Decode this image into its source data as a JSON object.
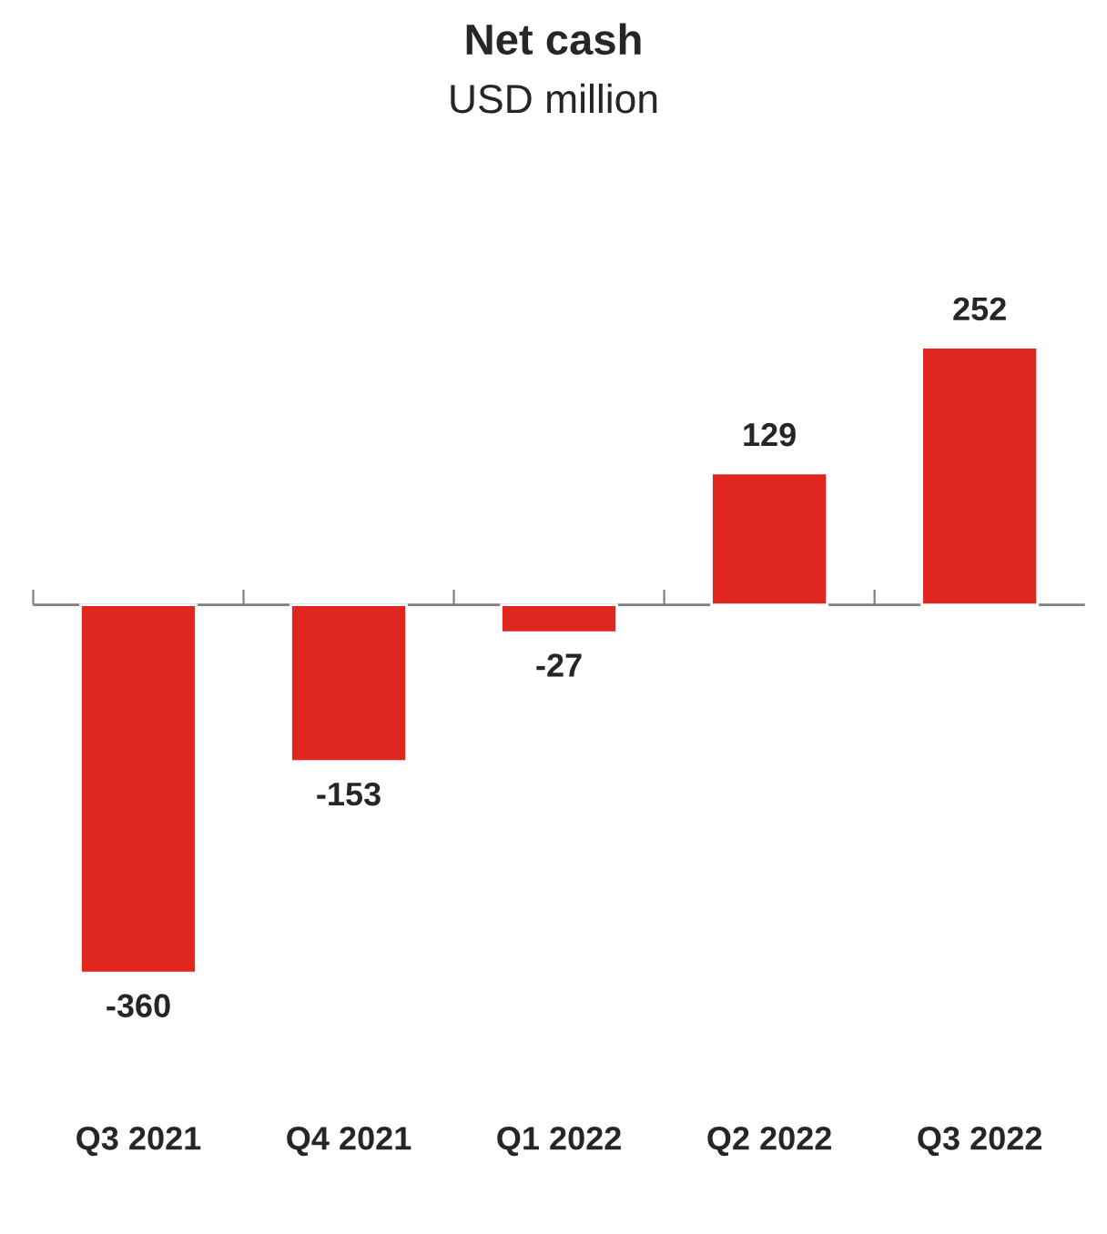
{
  "chart_data": {
    "type": "bar",
    "title": "Net cash",
    "subtitle": "USD million",
    "categories": [
      "Q3 2021",
      "Q4 2021",
      "Q1 2022",
      "Q2 2022",
      "Q3 2022"
    ],
    "values": [
      -360,
      -153,
      -27,
      129,
      252
    ],
    "color": "#e0271f",
    "data_labels": true,
    "grid": false,
    "legend": false
  }
}
